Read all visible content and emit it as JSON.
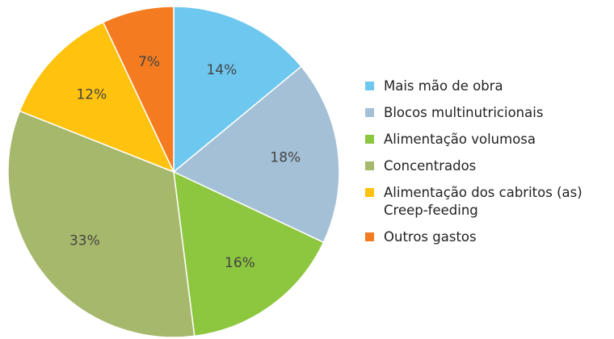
{
  "chart_data": {
    "type": "pie",
    "categories": [
      "Mais mão de obra",
      "Blocos multinutricionais",
      "Alimentação volumosa",
      "Concentrados",
      "Alimentação dos cabritos (as) Creep-feeding",
      "Outros gastos"
    ],
    "values": [
      14,
      18,
      16,
      33,
      12,
      7
    ],
    "value_labels": [
      "14%",
      "18%",
      "16%",
      "33%",
      "12%",
      "7%"
    ],
    "colors": [
      "#6dc7ee",
      "#a4c0d6",
      "#8dc63f",
      "#a6b86b",
      "#ffc20e",
      "#f47b20"
    ],
    "legend": "right"
  }
}
